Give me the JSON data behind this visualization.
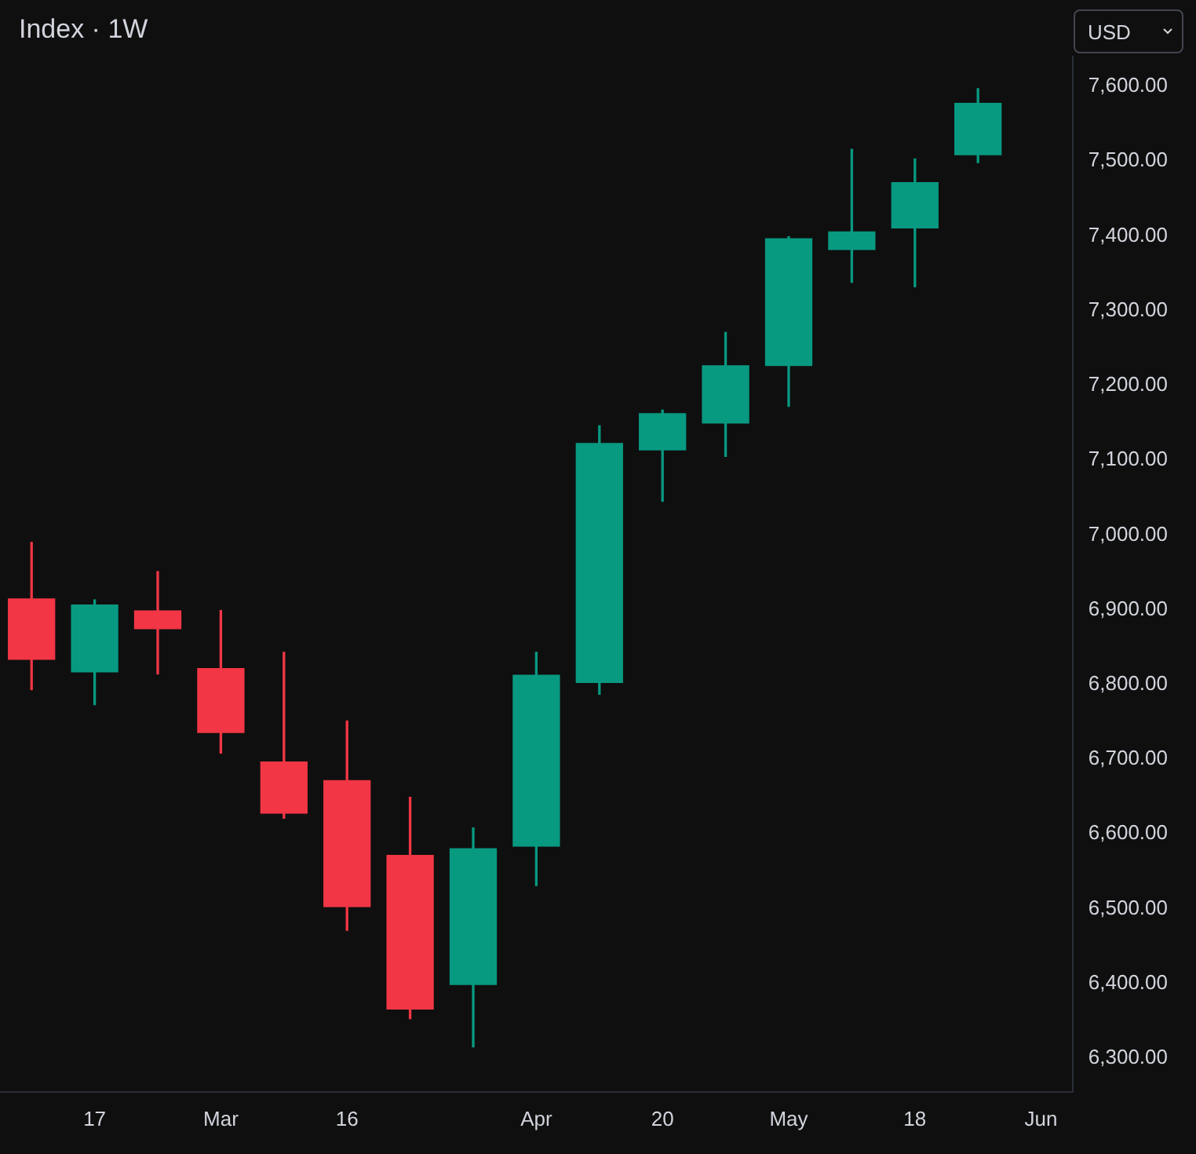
{
  "chart_data": {
    "type": "candlestick",
    "title": "Index · 1W",
    "annotations": [
      "USD"
    ],
    "categories": [
      null,
      "17",
      null,
      "Mar",
      null,
      "16",
      null,
      null,
      "Apr",
      null,
      "20",
      null,
      "May",
      null,
      "18",
      null,
      "Jun"
    ],
    "ohlc": [
      [
        6915,
        6990,
        6793,
        6833
      ],
      [
        6816,
        6913,
        6773,
        6907
      ],
      [
        6899,
        6951,
        6814,
        6874
      ],
      [
        6822,
        6899,
        6708,
        6735
      ],
      [
        6697,
        6843,
        6621,
        6627
      ],
      [
        6672,
        6751,
        6471,
        6502
      ],
      [
        6572,
        6649,
        6353,
        6365
      ],
      [
        6398,
        6608,
        6315,
        6581
      ],
      [
        6583,
        6843,
        6531,
        6813
      ],
      [
        6802,
        7146,
        6787,
        7123
      ],
      [
        7113,
        7167,
        7045,
        7163
      ],
      [
        7149,
        7271,
        7105,
        7227
      ],
      [
        7226,
        7399,
        7172,
        7397
      ],
      [
        7381,
        7516,
        7338,
        7406
      ],
      [
        7410,
        7503,
        7332,
        7472
      ],
      [
        7508,
        7597,
        7498,
        7578
      ],
      null
    ],
    "colors": [
      "#f23645",
      "#089981",
      "#f23645",
      "#f23645",
      "#f23645",
      "#f23645",
      "#f23645",
      "#089981",
      "#089981",
      "#089981",
      "#089981",
      "#089981",
      "#089981",
      "#089981",
      "#089981",
      "#089981",
      null
    ],
    "ylim": [
      6255,
      7640
    ],
    "yticks": [
      {
        "value": 6300,
        "label": "6,300.00"
      },
      {
        "value": 6400,
        "label": "6,400.00"
      },
      {
        "value": 6500,
        "label": "6,500.00"
      },
      {
        "value": 6600,
        "label": "6,600.00"
      },
      {
        "value": 6700,
        "label": "6,700.00"
      },
      {
        "value": 6800,
        "label": "6,800.00"
      },
      {
        "value": 6900,
        "label": "6,900.00"
      },
      {
        "value": 7000,
        "label": "7,000.00"
      },
      {
        "value": 7100,
        "label": "7,100.00"
      },
      {
        "value": 7200,
        "label": "7,200.00"
      },
      {
        "value": 7300,
        "label": "7,300.00"
      },
      {
        "value": 7400,
        "label": "7,400.00"
      },
      {
        "value": 7500,
        "label": "7,500.00"
      },
      {
        "value": 7600,
        "label": "7,600.00"
      }
    ],
    "grid": false,
    "legend": false
  }
}
